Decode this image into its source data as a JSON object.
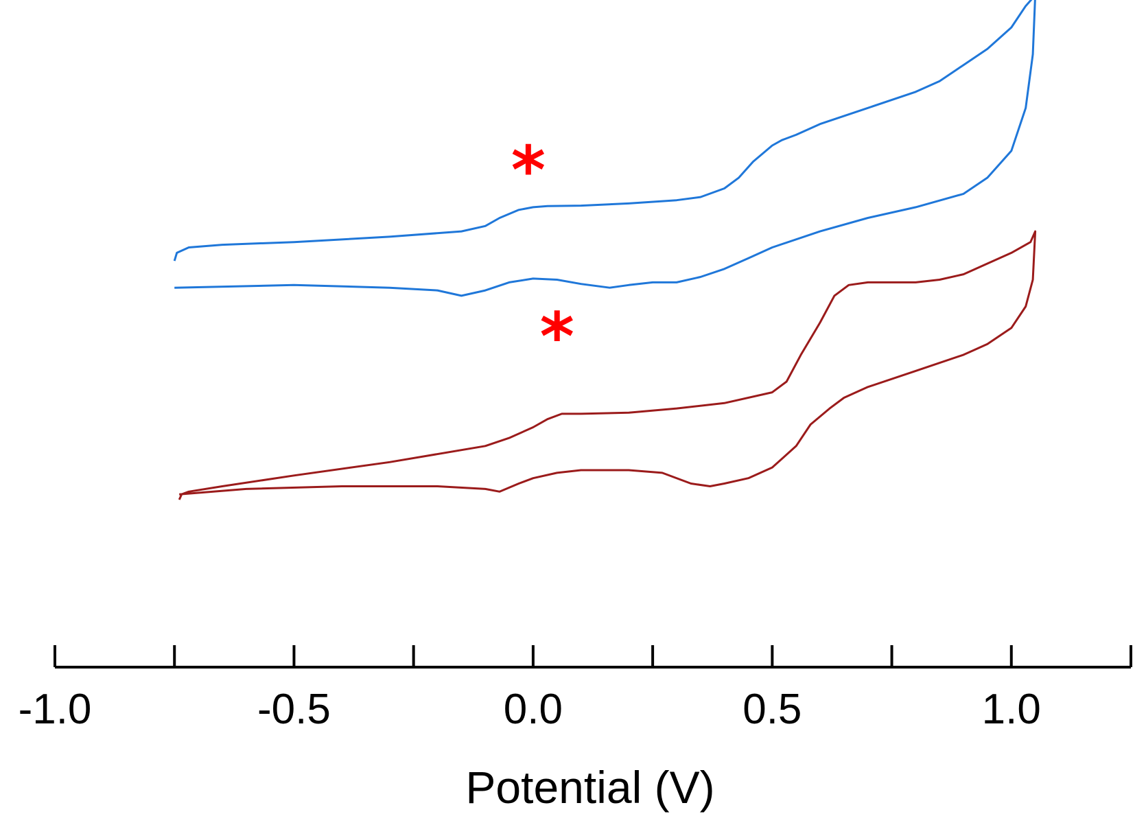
{
  "chart_data": {
    "type": "line",
    "title": "",
    "xlabel": "Potential (V)",
    "ylabel": "",
    "xlim": [
      -1.0,
      1.25
    ],
    "ylim": [
      -7.0,
      4.0
    ],
    "x_ticks_major": [
      -1.0,
      -0.5,
      0.0,
      0.5,
      1.0
    ],
    "x_tick_labels": [
      "-1.0",
      "-0.5",
      "0.0",
      "0.5",
      "1.0"
    ],
    "x_ticks_minor": [
      -0.75,
      -0.25,
      0.25,
      0.75,
      1.25
    ],
    "series": [
      {
        "name": "blue trace",
        "color": "#1f77d9",
        "x": [
          -0.75,
          -0.745,
          -0.72,
          -0.65,
          -0.5,
          -0.3,
          -0.15,
          -0.1,
          -0.07,
          -0.03,
          0.0,
          0.03,
          0.1,
          0.2,
          0.3,
          0.35,
          0.4,
          0.43,
          0.46,
          0.5,
          0.52,
          0.55,
          0.6,
          0.7,
          0.8,
          0.85,
          0.9,
          0.95,
          1.0,
          1.03,
          1.05,
          1.045,
          1.03,
          1.0,
          0.95,
          0.9,
          0.8,
          0.7,
          0.6,
          0.5,
          0.45,
          0.4,
          0.35,
          0.3,
          0.25,
          0.2,
          0.16,
          0.1,
          0.05,
          0.0,
          -0.05,
          -0.1,
          -0.15,
          -0.2,
          -0.3,
          -0.5,
          -0.75
        ],
        "y": [
          -0.35,
          -0.2,
          -0.1,
          -0.05,
          0.0,
          0.1,
          0.2,
          0.3,
          0.45,
          0.6,
          0.65,
          0.67,
          0.68,
          0.72,
          0.78,
          0.84,
          1.0,
          1.2,
          1.5,
          1.8,
          1.9,
          2.0,
          2.2,
          2.5,
          2.8,
          3.0,
          3.3,
          3.6,
          4.0,
          4.4,
          4.6,
          3.5,
          2.5,
          1.7,
          1.2,
          0.9,
          0.65,
          0.45,
          0.2,
          -0.1,
          -0.3,
          -0.5,
          -0.65,
          -0.75,
          -0.75,
          -0.8,
          -0.85,
          -0.78,
          -0.7,
          -0.68,
          -0.75,
          -0.9,
          -1.0,
          -0.9,
          -0.85,
          -0.8,
          -0.85
        ]
      },
      {
        "name": "red trace",
        "color": "#9b1b1b",
        "x": [
          -0.74,
          -0.735,
          -0.72,
          -0.65,
          -0.5,
          -0.3,
          -0.1,
          -0.05,
          0.0,
          0.03,
          0.06,
          0.08,
          0.1,
          0.2,
          0.3,
          0.4,
          0.5,
          0.53,
          0.56,
          0.6,
          0.63,
          0.66,
          0.7,
          0.75,
          0.8,
          0.85,
          0.9,
          0.95,
          1.0,
          1.04,
          1.05,
          1.045,
          1.03,
          1.0,
          0.95,
          0.9,
          0.8,
          0.7,
          0.65,
          0.62,
          0.58,
          0.55,
          0.5,
          0.45,
          0.4,
          0.37,
          0.33,
          0.27,
          0.2,
          0.1,
          0.05,
          0.0,
          -0.03,
          -0.07,
          -0.1,
          -0.2,
          -0.4,
          -0.6,
          -0.74
        ],
        "y": [
          -4.8,
          -4.7,
          -4.65,
          -4.55,
          -4.35,
          -4.1,
          -3.8,
          -3.65,
          -3.45,
          -3.3,
          -3.2,
          -3.2,
          -3.2,
          -3.18,
          -3.1,
          -3.0,
          -2.8,
          -2.6,
          -2.1,
          -1.5,
          -1.0,
          -0.8,
          -0.75,
          -0.75,
          -0.75,
          -0.7,
          -0.6,
          -0.4,
          -0.2,
          0.0,
          0.2,
          -0.7,
          -1.2,
          -1.6,
          -1.9,
          -2.1,
          -2.4,
          -2.7,
          -2.9,
          -3.1,
          -3.4,
          -3.8,
          -4.2,
          -4.4,
          -4.5,
          -4.55,
          -4.5,
          -4.3,
          -4.25,
          -4.25,
          -4.3,
          -4.4,
          -4.5,
          -4.65,
          -4.6,
          -4.55,
          -4.55,
          -4.6,
          -4.7
        ]
      }
    ],
    "annotations": [
      {
        "text": "*",
        "x": -0.01,
        "y": 1.25,
        "color": "#ff0000"
      },
      {
        "text": "*",
        "x": 0.05,
        "y": -1.85,
        "color": "#ff0000"
      }
    ]
  }
}
